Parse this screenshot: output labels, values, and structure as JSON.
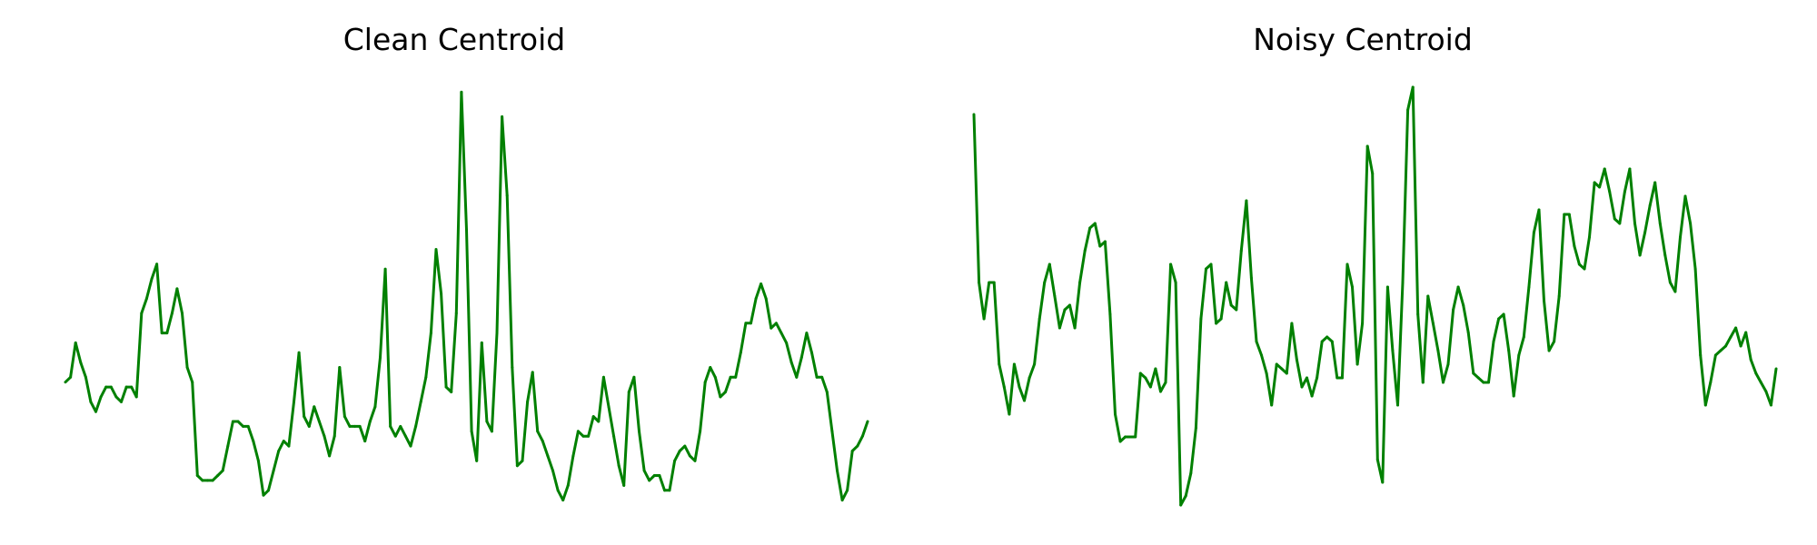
{
  "chart_data": [
    {
      "type": "line",
      "title": "Clean Centroid",
      "xlabel": "",
      "ylabel": "",
      "grid": false,
      "axes_visible": false,
      "color": "#008000",
      "series": [
        {
          "values": [
            0.02,
            0.03,
            0.1,
            0.06,
            0.03,
            -0.02,
            -0.04,
            -0.01,
            0.01,
            0.01,
            -0.01,
            -0.02,
            0.01,
            0.01,
            -0.01,
            0.16,
            0.19,
            0.23,
            0.26,
            0.12,
            0.12,
            0.16,
            0.21,
            0.16,
            0.05,
            0.02,
            -0.17,
            -0.18,
            -0.18,
            -0.18,
            -0.17,
            -0.16,
            -0.11,
            -0.06,
            -0.06,
            -0.07,
            -0.07,
            -0.1,
            -0.14,
            -0.21,
            -0.2,
            -0.16,
            -0.12,
            -0.1,
            -0.11,
            -0.02,
            0.08,
            -0.05,
            -0.07,
            -0.03,
            -0.06,
            -0.09,
            -0.13,
            -0.09,
            0.05,
            -0.05,
            -0.07,
            -0.07,
            -0.07,
            -0.1,
            -0.06,
            -0.03,
            0.07,
            0.25,
            -0.07,
            -0.09,
            -0.07,
            -0.09,
            -0.11,
            -0.07,
            -0.02,
            0.03,
            0.12,
            0.29,
            0.2,
            0.01,
            0.0,
            0.16,
            0.61,
            0.33,
            -0.08,
            -0.14,
            0.1,
            -0.06,
            -0.08,
            0.12,
            0.56,
            0.4,
            0.05,
            -0.15,
            -0.14,
            -0.02,
            0.04,
            -0.08,
            -0.1,
            -0.13,
            -0.16,
            -0.2,
            -0.22,
            -0.19,
            -0.13,
            -0.08,
            -0.09,
            -0.09,
            -0.05,
            -0.06,
            0.03,
            -0.03,
            -0.09,
            -0.15,
            -0.19,
            0.0,
            0.03,
            -0.08,
            -0.16,
            -0.18,
            -0.17,
            -0.17,
            -0.2,
            -0.2,
            -0.14,
            -0.12,
            -0.11,
            -0.13,
            -0.14,
            -0.08,
            0.02,
            0.05,
            0.03,
            -0.01,
            0.0,
            0.03,
            0.03,
            0.08,
            0.14,
            0.14,
            0.19,
            0.22,
            0.19,
            0.13,
            0.14,
            0.12,
            0.1,
            0.06,
            0.03,
            0.07,
            0.12,
            0.08,
            0.03,
            0.03,
            0.0,
            -0.08,
            -0.16,
            -0.22,
            -0.2,
            -0.12,
            -0.11,
            -0.09,
            -0.06
          ],
          "ylim": [
            -0.23,
            0.62
          ]
        }
      ]
    },
    {
      "type": "line",
      "title": "Noisy Centroid",
      "xlabel": "",
      "ylabel": "",
      "grid": false,
      "axes_visible": false,
      "color": "#008000",
      "series": [
        {
          "values": [
            0.47,
            0.1,
            0.02,
            0.1,
            0.1,
            -0.08,
            -0.13,
            -0.19,
            -0.08,
            -0.13,
            -0.16,
            -0.11,
            -0.08,
            0.02,
            0.1,
            0.14,
            0.07,
            0.0,
            0.04,
            0.05,
            0.0,
            0.1,
            0.17,
            0.22,
            0.23,
            0.18,
            0.19,
            0.03,
            -0.19,
            -0.25,
            -0.24,
            -0.24,
            -0.24,
            -0.1,
            -0.11,
            -0.13,
            -0.09,
            -0.14,
            -0.12,
            0.14,
            0.1,
            -0.39,
            -0.37,
            -0.32,
            -0.22,
            0.02,
            0.13,
            0.14,
            0.01,
            0.02,
            0.1,
            0.05,
            0.04,
            0.17,
            0.28,
            0.11,
            -0.03,
            -0.06,
            -0.1,
            -0.17,
            -0.08,
            -0.09,
            -0.1,
            0.01,
            -0.07,
            -0.13,
            -0.11,
            -0.15,
            -0.11,
            -0.03,
            -0.02,
            -0.03,
            -0.11,
            -0.11,
            0.14,
            0.09,
            -0.08,
            0.01,
            0.4,
            0.34,
            -0.29,
            -0.34,
            0.09,
            -0.05,
            -0.17,
            0.1,
            0.48,
            0.53,
            0.03,
            -0.12,
            0.07,
            0.01,
            -0.05,
            -0.12,
            -0.08,
            0.04,
            0.09,
            0.05,
            -0.01,
            -0.1,
            -0.11,
            -0.12,
            -0.12,
            -0.03,
            0.02,
            0.03,
            -0.05,
            -0.15,
            -0.06,
            -0.02,
            0.09,
            0.21,
            0.26,
            0.06,
            -0.05,
            -0.03,
            0.07,
            0.25,
            0.25,
            0.18,
            0.14,
            0.13,
            0.2,
            0.32,
            0.31,
            0.35,
            0.3,
            0.24,
            0.23,
            0.3,
            0.35,
            0.23,
            0.16,
            0.21,
            0.27,
            0.32,
            0.23,
            0.16,
            0.1,
            0.08,
            0.2,
            0.29,
            0.23,
            0.13,
            -0.06,
            -0.17,
            -0.12,
            -0.06,
            -0.05,
            -0.04,
            -0.02,
            0.0,
            -0.04,
            -0.01,
            -0.07,
            -0.1,
            -0.12,
            -0.14,
            -0.17,
            -0.09
          ]
        }
      ]
    }
  ]
}
